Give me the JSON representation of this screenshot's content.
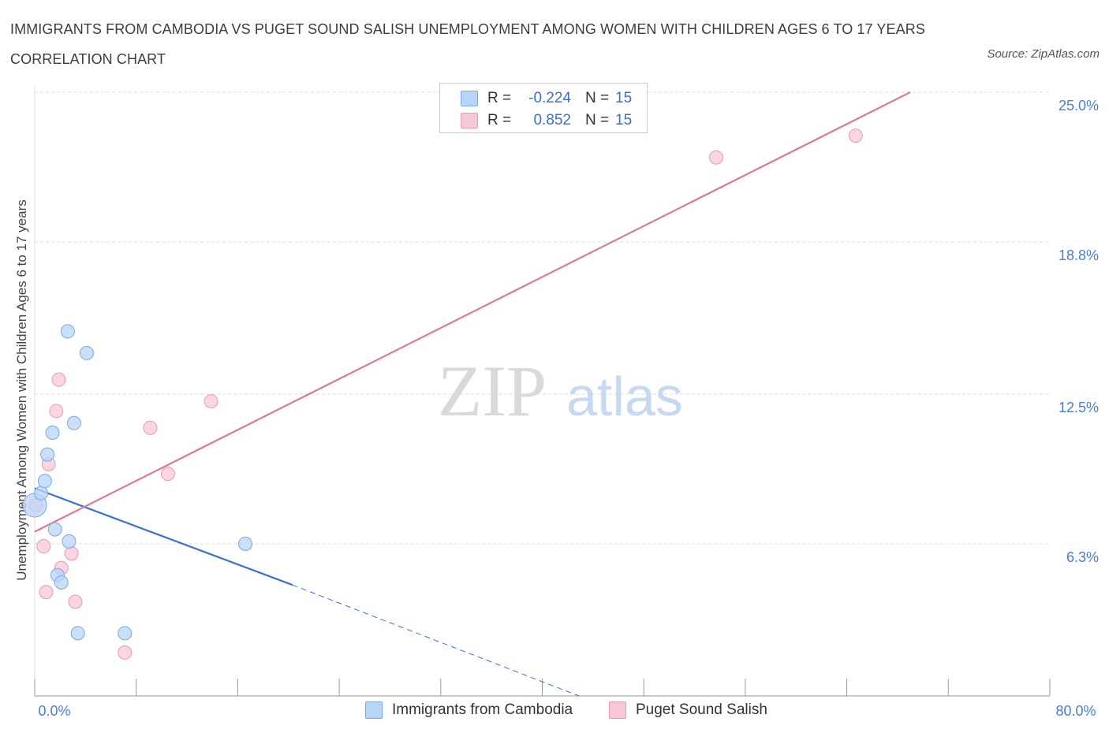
{
  "header": {
    "title": "IMMIGRANTS FROM CAMBODIA VS PUGET SOUND SALISH UNEMPLOYMENT AMONG WOMEN WITH CHILDREN AGES 6 TO 17 YEARS CORRELATION CHART",
    "source": "Source: ZipAtlas.com"
  },
  "watermark": {
    "zip": "ZIP",
    "atlas": "atlas"
  },
  "legend_top": {
    "rows": [
      {
        "r_label": "R =",
        "r_value": "-0.224",
        "n_label": "N =",
        "n_value": "15"
      },
      {
        "r_label": "R =",
        "r_value": "0.852",
        "n_label": "N =",
        "n_value": "15"
      }
    ]
  },
  "legend_bottom": {
    "items": [
      "Immigrants from Cambodia",
      "Puget Sound Salish"
    ]
  },
  "colors": {
    "cambodia_fill": "#b8d4f8",
    "cambodia_stroke": "#7aa8e0",
    "cambodia_line": "#3a72cf",
    "salish_fill": "#f9c8d6",
    "salish_stroke": "#e89ab2",
    "salish_line": "#e0769a",
    "grid": "#dcdcdc",
    "axis": "#999999"
  },
  "chart_data": {
    "type": "scatter",
    "title": "IMMIGRANTS FROM CAMBODIA VS PUGET SOUND SALISH UNEMPLOYMENT AMONG WOMEN WITH CHILDREN AGES 6 TO 17 YEARS CORRELATION CHART",
    "xlabel": "",
    "ylabel": "Unemployment Among Women with Children Ages 6 to 17 years",
    "xlim": [
      0,
      80
    ],
    "ylim": [
      0,
      25
    ],
    "x_tick_labels": [
      "0.0%",
      "80.0%"
    ],
    "y_ticks": [
      6.3,
      12.5,
      18.8,
      25.0
    ],
    "y_tick_labels": [
      "6.3%",
      "12.5%",
      "18.8%",
      "25.0%"
    ],
    "grid": true,
    "series": [
      {
        "name": "Immigrants from Cambodia",
        "r": -0.224,
        "n": 15,
        "points": [
          {
            "x": 0.0,
            "y": 7.9,
            "large": true
          },
          {
            "x": 0.5,
            "y": 8.4
          },
          {
            "x": 0.8,
            "y": 8.9
          },
          {
            "x": 1.0,
            "y": 10.0
          },
          {
            "x": 1.4,
            "y": 10.9
          },
          {
            "x": 1.6,
            "y": 6.9
          },
          {
            "x": 1.8,
            "y": 5.0
          },
          {
            "x": 2.1,
            "y": 4.7
          },
          {
            "x": 2.6,
            "y": 15.1
          },
          {
            "x": 2.7,
            "y": 6.4
          },
          {
            "x": 3.1,
            "y": 11.3
          },
          {
            "x": 3.4,
            "y": 2.6
          },
          {
            "x": 4.1,
            "y": 14.2
          },
          {
            "x": 7.1,
            "y": 2.6
          },
          {
            "x": 16.6,
            "y": 6.3
          }
        ],
        "trend": {
          "x0": 0,
          "y0": 8.6,
          "x1": 20.3,
          "y1": 4.6,
          "dash_to_x": 42.9,
          "dash_to_y": 0
        }
      },
      {
        "name": "Puget Sound Salish",
        "r": 0.852,
        "n": 15,
        "points": [
          {
            "x": 0.1,
            "y": 7.9
          },
          {
            "x": 0.7,
            "y": 6.2
          },
          {
            "x": 0.9,
            "y": 4.3
          },
          {
            "x": 1.1,
            "y": 9.6
          },
          {
            "x": 1.7,
            "y": 11.8
          },
          {
            "x": 1.9,
            "y": 13.1
          },
          {
            "x": 2.1,
            "y": 5.3
          },
          {
            "x": 2.9,
            "y": 5.9
          },
          {
            "x": 3.2,
            "y": 3.9
          },
          {
            "x": 7.1,
            "y": 1.8
          },
          {
            "x": 9.1,
            "y": 11.1
          },
          {
            "x": 10.5,
            "y": 9.2
          },
          {
            "x": 13.9,
            "y": 12.2
          },
          {
            "x": 53.7,
            "y": 22.3
          },
          {
            "x": 64.7,
            "y": 23.2
          }
        ],
        "trend": {
          "x0": 0,
          "y0": 6.8,
          "x1": 69.0,
          "y1": 25.0
        }
      }
    ]
  }
}
